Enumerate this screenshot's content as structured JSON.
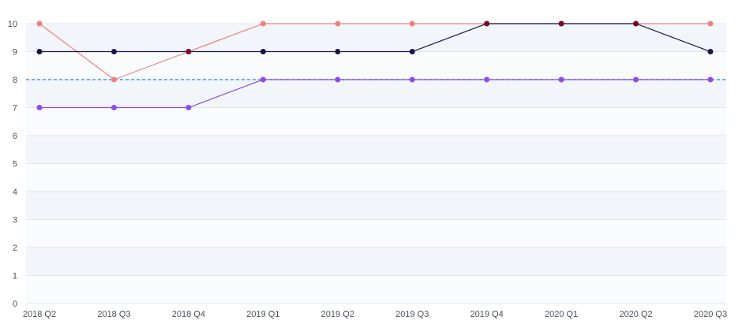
{
  "chart_data": {
    "type": "line",
    "categories": [
      "2018 Q2",
      "2018 Q3",
      "2018 Q4",
      "2019 Q1",
      "2019 Q2",
      "2019 Q3",
      "2019 Q4",
      "2020 Q1",
      "2020 Q2",
      "2020 Q3"
    ],
    "ylim": [
      0,
      10
    ],
    "yticks": [
      0,
      1,
      2,
      3,
      4,
      5,
      6,
      7,
      8,
      9,
      10
    ],
    "grid": true,
    "legend": "none",
    "series": [
      {
        "color": "#f08080",
        "values": [
          10,
          8,
          9,
          10,
          10,
          10,
          10,
          10,
          10,
          10
        ]
      },
      {
        "color": "#14144a",
        "values": [
          9,
          9,
          9,
          9,
          9,
          9,
          10,
          10,
          10,
          9
        ]
      },
      {
        "color": "#8a4de8",
        "values": [
          7,
          7,
          7,
          8,
          8,
          8,
          8,
          8,
          8,
          8
        ]
      }
    ],
    "reference_line": {
      "value": 8,
      "color": "#3d9bf0",
      "style": "dashed"
    },
    "overlap_marker_color": "#7a0a2a"
  }
}
